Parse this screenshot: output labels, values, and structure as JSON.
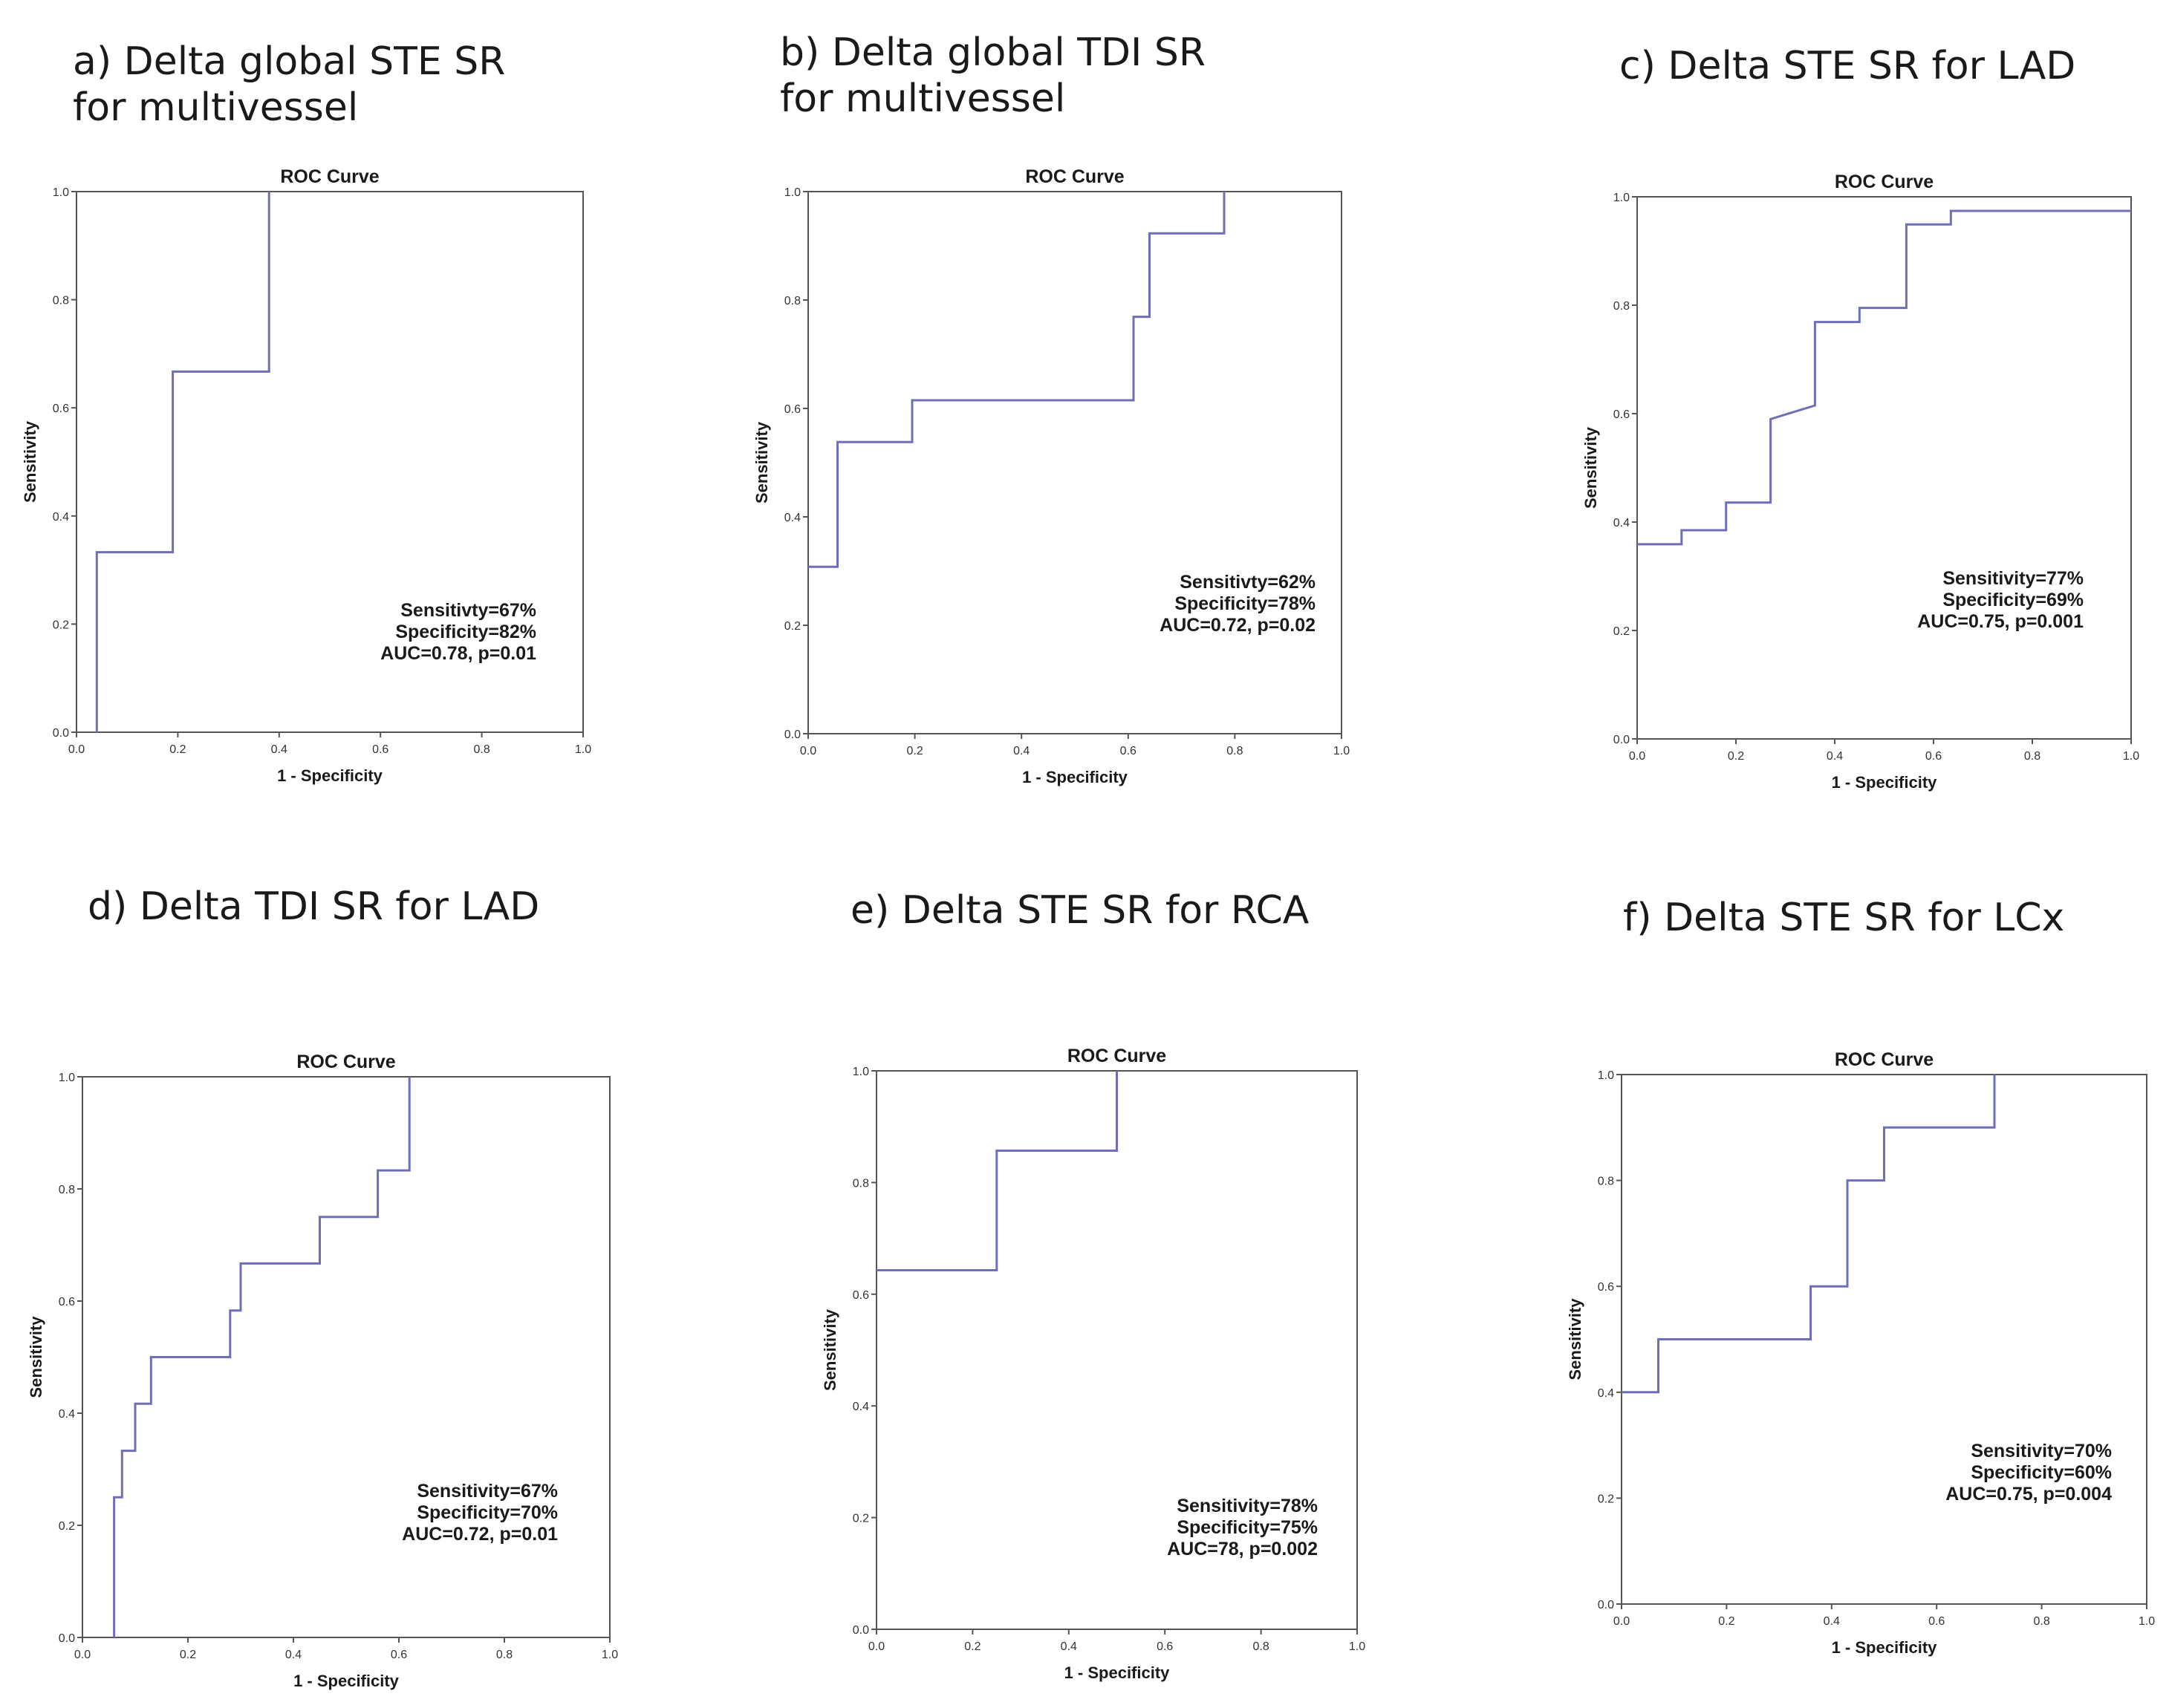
{
  "colors": {
    "curve": "#6f6fb8",
    "frame": "#555555",
    "text": "#1a1a1a"
  },
  "chart_data": [
    {
      "type": "line",
      "panel_title": "a) Delta global STE SR\n    for multivessel",
      "title": "ROC Curve",
      "xlabel": "1 - Specificity",
      "ylabel": "Sensitivity",
      "xlim": [
        0,
        1
      ],
      "ylim": [
        0,
        1
      ],
      "ticks": [
        "0.0",
        "0.2",
        "0.4",
        "0.6",
        "0.8",
        "1.0"
      ],
      "x": [
        0.04,
        0.04,
        0.19,
        0.19,
        0.38,
        0.38
      ],
      "y": [
        0.0,
        0.333,
        0.333,
        0.667,
        0.667,
        1.0
      ],
      "annotations": [
        "Sensitivty=67%",
        "Specificity=82%",
        "AUC=0.78, p=0.01"
      ]
    },
    {
      "type": "line",
      "panel_title": "b) Delta global TDI SR\n    for multivessel",
      "title": "ROC Curve",
      "xlabel": "1 - Specificity",
      "ylabel": "Sensitivity",
      "xlim": [
        0,
        1
      ],
      "ylim": [
        0,
        1
      ],
      "ticks": [
        "0.0",
        "0.2",
        "0.4",
        "0.6",
        "0.8",
        "1.0"
      ],
      "x": [
        0.0,
        0.055,
        0.055,
        0.195,
        0.195,
        0.61,
        0.61,
        0.64,
        0.64,
        0.78,
        0.78
      ],
      "y": [
        0.308,
        0.308,
        0.538,
        0.538,
        0.615,
        0.615,
        0.769,
        0.769,
        0.923,
        0.923,
        1.0
      ],
      "annotations": [
        "Sensitivty=62%",
        "Specificity=78%",
        "AUC=0.72, p=0.02"
      ]
    },
    {
      "type": "line",
      "panel_title": "c) Delta STE SR for LAD",
      "title": "ROC Curve",
      "xlabel": "1 - Specificity",
      "ylabel": "Sensitivity",
      "xlim": [
        0,
        1
      ],
      "ylim": [
        0,
        1
      ],
      "ticks": [
        "0.0",
        "0.2",
        "0.4",
        "0.6",
        "0.8",
        "1.0"
      ],
      "x": [
        0.0,
        0.09,
        0.09,
        0.18,
        0.18,
        0.27,
        0.27,
        0.36,
        0.36,
        0.45,
        0.45,
        0.545,
        0.545,
        0.635,
        0.635,
        1.0
      ],
      "y": [
        0.359,
        0.359,
        0.385,
        0.385,
        0.436,
        0.436,
        0.59,
        0.615,
        0.769,
        0.769,
        0.795,
        0.795,
        0.949,
        0.949,
        0.974,
        0.974
      ],
      "annotations": [
        "Sensitivity=77%",
        "Specificity=69%",
        "AUC=0.75, p=0.001"
      ]
    },
    {
      "type": "line",
      "panel_title": "d) Delta TDI SR for LAD",
      "title": "ROC Curve",
      "xlabel": "1 - Specificity",
      "ylabel": "Sensitivity",
      "xlim": [
        0,
        1
      ],
      "ylim": [
        0,
        1
      ],
      "ticks": [
        "0.0",
        "0.2",
        "0.4",
        "0.6",
        "0.8",
        "1.0"
      ],
      "x": [
        0.06,
        0.06,
        0.075,
        0.075,
        0.1,
        0.1,
        0.13,
        0.13,
        0.28,
        0.28,
        0.3,
        0.3,
        0.45,
        0.45,
        0.56,
        0.56,
        0.62,
        0.62
      ],
      "y": [
        0.0,
        0.25,
        0.25,
        0.333,
        0.333,
        0.417,
        0.417,
        0.5,
        0.5,
        0.583,
        0.583,
        0.667,
        0.667,
        0.75,
        0.75,
        0.833,
        0.833,
        1.0
      ],
      "annotations": [
        "Sensitivity=67%",
        "Specificity=70%",
        "AUC=0.72, p=0.01"
      ]
    },
    {
      "type": "line",
      "panel_title": "e) Delta STE SR for RCA",
      "title": "ROC Curve",
      "xlabel": "1 - Specificity",
      "ylabel": "Sensitivity",
      "xlim": [
        0,
        1
      ],
      "ylim": [
        0,
        1
      ],
      "ticks": [
        "0.0",
        "0.2",
        "0.4",
        "0.6",
        "0.8",
        "1.0"
      ],
      "x": [
        0.0,
        0.25,
        0.25,
        0.5,
        0.5
      ],
      "y": [
        0.643,
        0.643,
        0.857,
        0.857,
        1.0
      ],
      "annotations": [
        "Sensitivity=78%",
        "Specificity=75%",
        "AUC=78, p=0.002"
      ]
    },
    {
      "type": "line",
      "panel_title": "f) Delta STE SR for LCx",
      "title": "ROC Curve",
      "xlabel": "1 - Specificity",
      "ylabel": "Sensitivity",
      "xlim": [
        0,
        1
      ],
      "ylim": [
        0,
        1
      ],
      "ticks": [
        "0.0",
        "0.2",
        "0.4",
        "0.6",
        "0.8",
        "1.0"
      ],
      "x": [
        0.0,
        0.07,
        0.07,
        0.36,
        0.36,
        0.43,
        0.43,
        0.5,
        0.5,
        0.71,
        0.71
      ],
      "y": [
        0.4,
        0.4,
        0.5,
        0.5,
        0.6,
        0.6,
        0.8,
        0.8,
        0.9,
        0.9,
        1.0
      ],
      "annotations": [
        "Sensitivity=70%",
        "Specificity=60%",
        "AUC=0.75, p=0.004"
      ]
    }
  ]
}
